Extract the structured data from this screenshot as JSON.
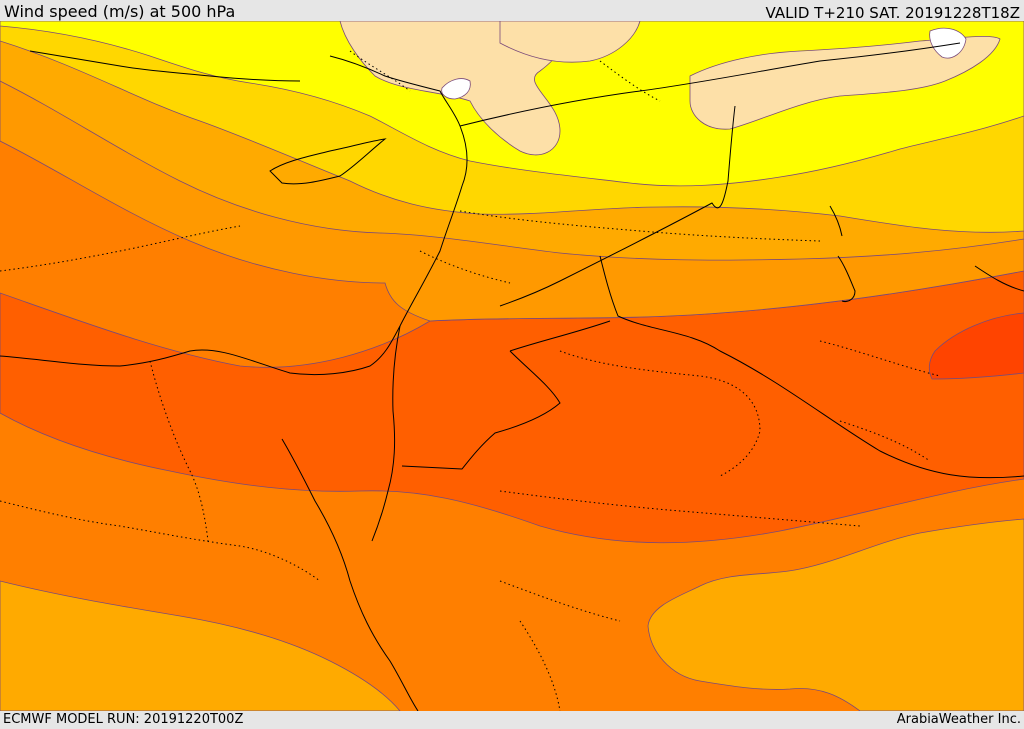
{
  "header": {
    "title": "Wind speed (m/s) at 500 hPa",
    "valid_time": "VALID T+210 SAT. 20191228T18Z"
  },
  "footer": {
    "model_run": "ECMWF MODEL RUN: 20191220T00Z",
    "provider": "ArabiaWeather Inc."
  },
  "map": {
    "variable": "wind speed",
    "level": "500 hPa",
    "colors": {
      "calm": "#ffffff",
      "very_low": "#fde0a8",
      "low": "#ffff00",
      "low_mid": "#ffd700",
      "mid": "#ffaa00",
      "mid_high": "#ff9900",
      "high": "#ff7f00",
      "very_high": "#ff5f00",
      "peak": "#ff4400",
      "contour": "#7a4a7a",
      "coastline": "#000000"
    }
  }
}
